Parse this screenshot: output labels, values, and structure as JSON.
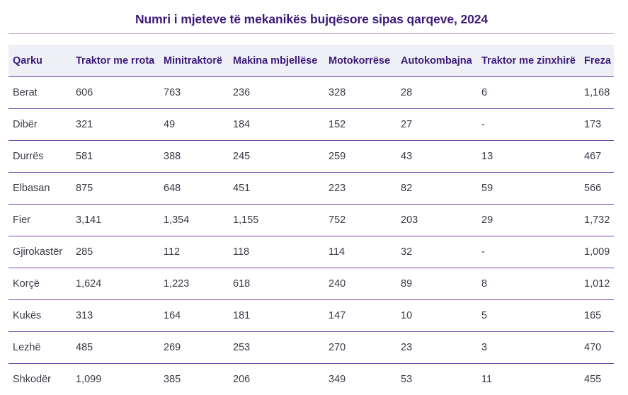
{
  "chart_data": {
    "type": "table",
    "title": "Numri i mjeteve të mekanikës bujqësore sipas qarqeve, 2024",
    "columns": [
      "Qarku",
      "Traktor me rrota",
      "Minitraktorë",
      "Makina mbjellëse",
      "Motokorrëse",
      "Autokombajna",
      "Traktor me zinxhirë",
      "Freza"
    ],
    "rows": [
      [
        "Berat",
        "606",
        "763",
        "236",
        "328",
        "28",
        "6",
        "1,168"
      ],
      [
        "Dibër",
        "321",
        "49",
        "184",
        "152",
        "27",
        "-",
        "173"
      ],
      [
        "Durrës",
        "581",
        "388",
        "245",
        "259",
        "43",
        "13",
        "467"
      ],
      [
        "Elbasan",
        "875",
        "648",
        "451",
        "223",
        "82",
        "59",
        "566"
      ],
      [
        "Fier",
        "3,141",
        "1,354",
        "1,155",
        "752",
        "203",
        "29",
        "1,732"
      ],
      [
        "Gjirokastër",
        "285",
        "112",
        "118",
        "114",
        "32",
        "-",
        "1,009"
      ],
      [
        "Korçë",
        "1,624",
        "1,223",
        "618",
        "240",
        "89",
        "8",
        "1,012"
      ],
      [
        "Kukës",
        "313",
        "164",
        "181",
        "147",
        "10",
        "5",
        "165"
      ],
      [
        "Lezhë",
        "485",
        "269",
        "253",
        "270",
        "23",
        "3",
        "470"
      ],
      [
        "Shkodër",
        "1,099",
        "385",
        "206",
        "349",
        "53",
        "11",
        "455"
      ]
    ]
  },
  "colors": {
    "title": "#3c1a78",
    "header_bg": "#eef0f6",
    "row_rule": "#7b4aa8"
  }
}
